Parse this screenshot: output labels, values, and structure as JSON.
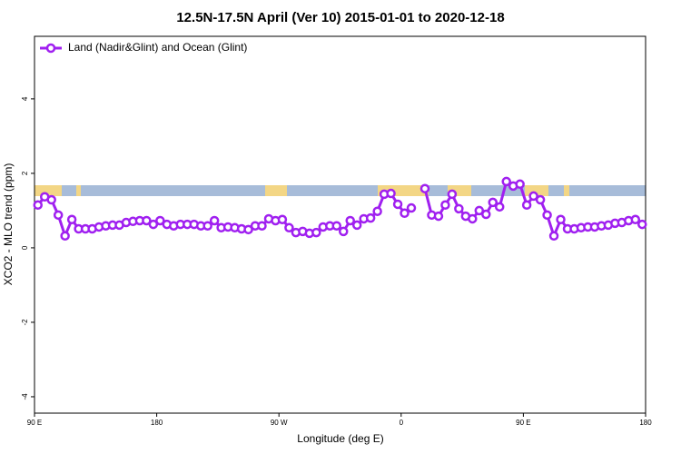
{
  "chart_data": {
    "type": "line",
    "title": "12.5N-17.5N April (Ver 10)   2015-01-01 to 2020-12-18",
    "x_label": "Longitude (deg E)",
    "y_label": "XCO2 - MLO trend (ppm)",
    "xlim": [
      90,
      540
    ],
    "xticks": [
      {
        "value": 90,
        "label": "90 E"
      },
      180,
      {
        "value": 270,
        "label": "90 W"
      },
      {
        "value": 360,
        "label": "0"
      },
      {
        "value": 450,
        "label": "90 E"
      },
      {
        "value": 540,
        "label": "180"
      }
    ],
    "ylim": [
      -4.44,
      5.68
    ],
    "yticks": [
      -4,
      -2,
      0,
      2,
      4
    ],
    "legend": "top-left",
    "x": [
      92.5,
      97.5,
      102.5,
      107.5,
      112.5,
      117.5,
      122.5,
      127.5,
      132.5,
      137.5,
      142.5,
      147.5,
      152.5,
      157.5,
      162.5,
      167.5,
      172.5,
      177.5,
      182.5,
      187.5,
      192.5,
      197.5,
      202.5,
      207.5,
      212.5,
      217.5,
      222.5,
      227.5,
      232.5,
      237.5,
      242.5,
      247.5,
      252.5,
      257.5,
      262.5,
      267.5,
      272.5,
      277.5,
      282.5,
      287.5,
      292.5,
      297.5,
      302.5,
      307.5,
      312.5,
      317.5,
      322.5,
      327.5,
      332.5,
      337.5,
      342.5,
      347.5,
      352.5,
      357.5,
      362.5,
      367.5,
      372.5,
      377.5,
      382.5,
      387.5,
      392.5,
      397.5,
      402.5,
      407.5,
      412.5,
      417.5,
      422.5,
      427.5,
      432.5,
      437.5,
      442.5,
      447.5,
      452.5,
      457.5,
      462.5,
      467.5,
      472.5,
      477.5,
      482.5,
      487.5,
      492.5,
      497.5,
      502.5,
      507.5,
      512.5,
      517.5,
      522.5,
      527.5,
      532.5,
      537.5
    ],
    "series": [
      {
        "name": "Land (Nadir&Glint) and Ocean (Glint)",
        "color": "#a020f0",
        "values": [
          1.15,
          1.37,
          1.29,
          0.88,
          0.32,
          0.76,
          0.51,
          0.51,
          0.51,
          0.56,
          0.59,
          0.61,
          0.61,
          0.68,
          0.71,
          0.73,
          0.73,
          0.63,
          0.73,
          0.63,
          0.59,
          0.63,
          0.63,
          0.63,
          0.59,
          0.59,
          0.73,
          0.54,
          0.56,
          0.54,
          0.51,
          0.49,
          0.59,
          0.59,
          0.78,
          0.73,
          0.76,
          0.54,
          0.41,
          0.44,
          0.39,
          0.41,
          0.56,
          0.59,
          0.59,
          0.44,
          0.73,
          0.61,
          0.78,
          0.8,
          0.98,
          1.44,
          1.46,
          1.17,
          0.93,
          1.07,
          null,
          1.59,
          0.88,
          0.85,
          1.15,
          1.44,
          1.05,
          0.85,
          0.78,
          1.0,
          0.9,
          1.22,
          1.1,
          1.78,
          1.66,
          1.71,
          1.15,
          1.39,
          1.29,
          0.88,
          0.32,
          0.76,
          0.51,
          0.51,
          0.54,
          0.56,
          0.56,
          0.59,
          0.61,
          0.66,
          0.68,
          0.73,
          0.76,
          0.63
        ]
      }
    ]
  }
}
